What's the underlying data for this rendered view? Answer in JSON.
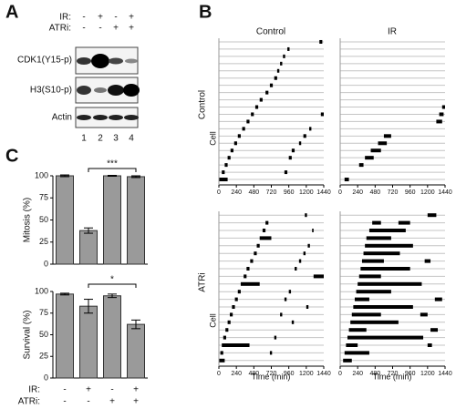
{
  "figure": {
    "panel_labels": [
      "A",
      "B",
      "C"
    ]
  },
  "blot": {
    "conditions": [
      {
        "label": "IR:",
        "signs": [
          "-",
          "+",
          "-",
          "+"
        ]
      },
      {
        "label": "ATRi:",
        "signs": [
          "-",
          "-",
          "+",
          "+"
        ]
      }
    ],
    "rows": [
      "CDK1(Y15-p)",
      "H3(S10-p)",
      "Actin"
    ],
    "lanes": [
      "1",
      "2",
      "3",
      "4"
    ]
  },
  "timelines": {
    "columns": [
      "Control",
      "IR"
    ],
    "rows": [
      "Control",
      "ATRi"
    ],
    "y_label": "Cell",
    "x_label": "Time (min)"
  },
  "chart_data": [
    {
      "type": "timeline",
      "xlim": [
        0,
        1440
      ],
      "xticks": [
        0,
        240,
        480,
        720,
        960,
        1200,
        1440
      ],
      "cells": [
        [
          [
            1380,
            1420
          ]
        ],
        [
          [
            940,
            970
          ]
        ],
        [
          [
            880,
            910
          ]
        ],
        [
          [
            840,
            870
          ]
        ],
        [
          [
            800,
            830
          ]
        ],
        [
          [
            760,
            800
          ]
        ],
        [
          [
            700,
            740
          ]
        ],
        [
          [
            640,
            680
          ]
        ],
        [
          [
            560,
            600
          ]
        ],
        [
          [
            500,
            540
          ]
        ],
        [
          [
            440,
            480
          ],
          [
            1400,
            1440
          ]
        ],
        [
          [
            380,
            420
          ]
        ],
        [
          [
            320,
            360
          ],
          [
            1240,
            1270
          ]
        ],
        [
          [
            260,
            300
          ],
          [
            1160,
            1200
          ]
        ],
        [
          [
            210,
            250
          ],
          [
            1100,
            1130
          ]
        ],
        [
          [
            160,
            200
          ],
          [
            1000,
            1040
          ]
        ],
        [
          [
            120,
            160
          ],
          [
            960,
            1000
          ]
        ],
        [
          [
            80,
            120
          ]
        ],
        [
          [
            40,
            80
          ],
          [
            900,
            940
          ]
        ],
        [
          [
            0,
            120
          ]
        ]
      ]
    },
    {
      "type": "timeline",
      "xlim": [
        0,
        1440
      ],
      "xticks": [
        0,
        240,
        480,
        720,
        960,
        1200,
        1440
      ],
      "cells": [
        [],
        [],
        [],
        [],
        [],
        [],
        [],
        [],
        [],
        [
          [
            1400,
            1440
          ]
        ],
        [
          [
            1360,
            1420
          ]
        ],
        [
          [
            1320,
            1400
          ]
        ],
        [],
        [
          [
            600,
            700
          ]
        ],
        [
          [
            520,
            640
          ]
        ],
        [
          [
            420,
            560
          ]
        ],
        [
          [
            340,
            460
          ]
        ],
        [
          [
            260,
            320
          ]
        ],
        [],
        [
          [
            60,
            120
          ]
        ]
      ]
    },
    {
      "type": "timeline",
      "xlim": [
        0,
        1440
      ],
      "xticks": [
        0,
        240,
        480,
        720,
        960,
        1200,
        1440
      ],
      "cells": [
        [
          [
            1180,
            1210
          ]
        ],
        [
          [
            640,
            680
          ]
        ],
        [
          [
            600,
            640
          ],
          [
            1280,
            1300
          ]
        ],
        [
          [
            560,
            720
          ]
        ],
        [
          [
            520,
            560
          ],
          [
            1220,
            1250
          ]
        ],
        [
          [
            480,
            520
          ],
          [
            1160,
            1190
          ]
        ],
        [
          [
            430,
            470
          ],
          [
            1100,
            1130
          ]
        ],
        [
          [
            380,
            420
          ],
          [
            1040,
            1070
          ]
        ],
        [
          [
            340,
            380
          ],
          [
            1300,
            1440
          ]
        ],
        [
          [
            300,
            560
          ]
        ],
        [
          [
            260,
            300
          ],
          [
            960,
            990
          ]
        ],
        [
          [
            220,
            260
          ],
          [
            900,
            930
          ]
        ],
        [
          [
            180,
            220
          ],
          [
            1200,
            1230
          ]
        ],
        [
          [
            150,
            190
          ],
          [
            840,
            870
          ]
        ],
        [
          [
            120,
            160
          ],
          [
            1000,
            1030
          ]
        ],
        [
          [
            90,
            130
          ]
        ],
        [
          [
            60,
            100
          ],
          [
            760,
            790
          ]
        ],
        [
          [
            40,
            420
          ]
        ],
        [
          [
            20,
            60
          ],
          [
            700,
            730
          ]
        ],
        [
          [
            0,
            80
          ]
        ]
      ]
    },
    {
      "type": "timeline",
      "xlim": [
        0,
        1440
      ],
      "xticks": [
        0,
        240,
        480,
        720,
        960,
        1200,
        1440
      ],
      "cells": [
        [
          [
            1200,
            1320
          ]
        ],
        [
          [
            440,
            560
          ],
          [
            800,
            960
          ]
        ],
        [
          [
            400,
            900
          ]
        ],
        [
          [
            360,
            700
          ]
        ],
        [
          [
            340,
            1000
          ]
        ],
        [
          [
            320,
            820
          ]
        ],
        [
          [
            300,
            600
          ],
          [
            1160,
            1240
          ]
        ],
        [
          [
            280,
            960
          ]
        ],
        [
          [
            260,
            560
          ]
        ],
        [
          [
            240,
            1120
          ]
        ],
        [
          [
            220,
            700
          ]
        ],
        [
          [
            200,
            400
          ],
          [
            1300,
            1400
          ]
        ],
        [
          [
            180,
            1000
          ]
        ],
        [
          [
            160,
            560
          ],
          [
            1100,
            1200
          ]
        ],
        [
          [
            140,
            800
          ]
        ],
        [
          [
            120,
            360
          ],
          [
            1240,
            1340
          ]
        ],
        [
          [
            100,
            1140
          ]
        ],
        [
          [
            80,
            240
          ],
          [
            1200,
            1260
          ]
        ],
        [
          [
            60,
            400
          ]
        ],
        [
          [
            40,
            160
          ]
        ]
      ]
    },
    {
      "type": "bar",
      "ylabel": "Mitosis (%)",
      "values": [
        100,
        38,
        100,
        99
      ],
      "errors": [
        1,
        3,
        0.5,
        1
      ],
      "ylim": [
        0,
        100
      ],
      "yticks": [
        0,
        25,
        50,
        75,
        100
      ],
      "color": "#9a9a9a",
      "significance": "***"
    },
    {
      "type": "bar",
      "ylabel": "Survival (%)",
      "values": [
        97,
        83,
        95,
        62
      ],
      "errors": [
        1,
        8,
        2,
        5
      ],
      "ylim": [
        0,
        100
      ],
      "yticks": [
        0,
        25,
        50,
        75,
        100
      ],
      "color": "#9a9a9a",
      "significance": "*",
      "conditions": [
        {
          "label": "IR:",
          "signs": [
            "-",
            "+",
            "-",
            "+"
          ]
        },
        {
          "label": "ATRi:",
          "signs": [
            "-",
            "-",
            "+",
            "+"
          ]
        }
      ]
    }
  ]
}
